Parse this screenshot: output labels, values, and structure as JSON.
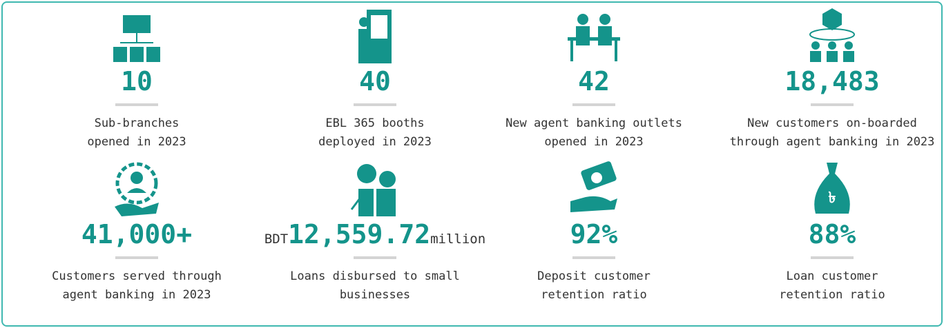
{
  "items": [
    {
      "value": "10",
      "label": [
        "Sub-branches",
        "opened in 2023"
      ]
    },
    {
      "value": "40",
      "label": [
        "EBL 365 booths",
        "deployed in 2023"
      ]
    },
    {
      "value": "42",
      "label": [
        "New agent banking outlets",
        "opened in 2023"
      ]
    },
    {
      "value": "18,483",
      "label": [
        "New customers on-boarded",
        "through agent banking in 2023"
      ]
    },
    {
      "value": "41,000+",
      "label": [
        "Customers served through",
        "agent banking in 2023"
      ]
    },
    {
      "prefix": "BDT",
      "value": "12,559.72",
      "suffix": "million",
      "label": [
        "Loans disbursed to small",
        "businesses"
      ]
    },
    {
      "value": "92%",
      "label": [
        "Deposit customer",
        "retention ratio"
      ]
    },
    {
      "value": "88%",
      "label": [
        "Loan customer",
        "retention ratio"
      ]
    }
  ]
}
